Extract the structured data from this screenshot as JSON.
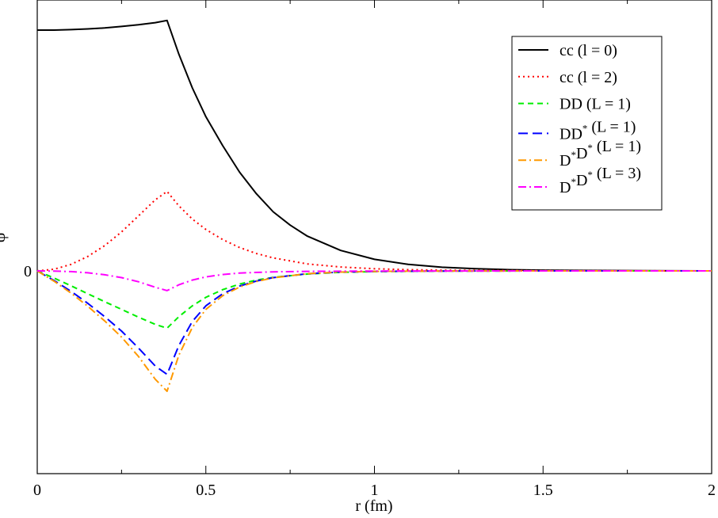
{
  "chart_data": {
    "type": "line",
    "title": "",
    "xlabel": "r (fm)",
    "ylabel": "ψ",
    "xlim": [
      0,
      2
    ],
    "ylim": [
      -0.9,
      1.12
    ],
    "x_ticks": [
      "0",
      "0.5",
      "1",
      "1.5",
      "2"
    ],
    "y_ticks": [
      "0"
    ],
    "grid": false,
    "legend_position": "top-right",
    "series": [
      {
        "name": "cc (l = 0)",
        "color": "#000000",
        "dash": "solid",
        "x": [
          0,
          0.05,
          0.1,
          0.15,
          0.2,
          0.25,
          0.3,
          0.35,
          0.385,
          0.42,
          0.46,
          0.5,
          0.55,
          0.6,
          0.65,
          0.7,
          0.75,
          0.8,
          0.9,
          1.0,
          1.1,
          1.2,
          1.3,
          1.4,
          1.5,
          1.6,
          1.8,
          2.0
        ],
        "y": [
          1.0,
          1.0,
          1.002,
          1.005,
          1.009,
          1.015,
          1.022,
          1.031,
          1.04,
          0.9,
          0.76,
          0.64,
          0.52,
          0.41,
          0.32,
          0.245,
          0.19,
          0.145,
          0.085,
          0.048,
          0.027,
          0.015,
          0.009,
          0.005,
          0.003,
          0.002,
          0.001,
          0.0
        ]
      },
      {
        "name": "cc (l = 2)",
        "color": "#ff0000",
        "dash": "dotted",
        "x": [
          0,
          0.05,
          0.1,
          0.15,
          0.2,
          0.25,
          0.3,
          0.35,
          0.385,
          0.42,
          0.46,
          0.5,
          0.55,
          0.6,
          0.65,
          0.7,
          0.8,
          0.9,
          1.0,
          1.1,
          1.2,
          1.3,
          1.5,
          2.0
        ],
        "y": [
          0.0,
          0.007,
          0.027,
          0.06,
          0.105,
          0.162,
          0.228,
          0.295,
          0.33,
          0.27,
          0.215,
          0.172,
          0.13,
          0.097,
          0.072,
          0.054,
          0.029,
          0.016,
          0.009,
          0.005,
          0.003,
          0.002,
          0.0005,
          0.0
        ]
      },
      {
        "name": "DD (L = 1)",
        "color": "#00ee00",
        "dash": "dashed",
        "x": [
          0,
          0.05,
          0.1,
          0.15,
          0.2,
          0.25,
          0.3,
          0.35,
          0.385,
          0.42,
          0.46,
          0.5,
          0.55,
          0.6,
          0.65,
          0.7,
          0.8,
          0.9,
          1.0,
          1.2,
          1.5,
          2.0
        ],
        "y": [
          0.0,
          -0.03,
          -0.062,
          -0.095,
          -0.128,
          -0.16,
          -0.192,
          -0.222,
          -0.238,
          -0.19,
          -0.145,
          -0.11,
          -0.078,
          -0.055,
          -0.038,
          -0.027,
          -0.013,
          -0.006,
          -0.003,
          -0.001,
          0.0,
          0.0
        ]
      },
      {
        "name": "DD* (L = 1)",
        "color": "#0000ff",
        "dash": "longdash",
        "x": [
          0,
          0.05,
          0.1,
          0.15,
          0.2,
          0.25,
          0.3,
          0.35,
          0.385,
          0.42,
          0.46,
          0.5,
          0.55,
          0.6,
          0.65,
          0.7,
          0.8,
          0.9,
          1.0,
          1.2,
          1.5,
          2.0
        ],
        "y": [
          0.0,
          -0.04,
          -0.085,
          -0.135,
          -0.19,
          -0.25,
          -0.32,
          -0.395,
          -0.43,
          -0.31,
          -0.21,
          -0.145,
          -0.095,
          -0.063,
          -0.042,
          -0.028,
          -0.012,
          -0.005,
          -0.002,
          -0.0005,
          0.0,
          0.0
        ]
      },
      {
        "name": "D*D* (L = 1)",
        "color": "#ff9900",
        "dash": "dashdot",
        "x": [
          0,
          0.05,
          0.1,
          0.15,
          0.2,
          0.25,
          0.3,
          0.35,
          0.385,
          0.42,
          0.46,
          0.5,
          0.55,
          0.6,
          0.65,
          0.7,
          0.8,
          0.9,
          1.0,
          1.2,
          1.5,
          2.0
        ],
        "y": [
          0.0,
          -0.043,
          -0.092,
          -0.147,
          -0.208,
          -0.275,
          -0.355,
          -0.45,
          -0.5,
          -0.35,
          -0.235,
          -0.16,
          -0.103,
          -0.067,
          -0.044,
          -0.029,
          -0.012,
          -0.005,
          -0.002,
          -0.0005,
          0.0,
          0.0
        ]
      },
      {
        "name": "D*D* (L = 3)",
        "color": "#ff00ff",
        "dash": "dashdot",
        "x": [
          0,
          0.05,
          0.1,
          0.15,
          0.2,
          0.25,
          0.3,
          0.35,
          0.385,
          0.42,
          0.46,
          0.5,
          0.55,
          0.6,
          0.7,
          0.8,
          1.0,
          1.5,
          2.0
        ],
        "y": [
          0.0,
          -0.001,
          -0.003,
          -0.008,
          -0.016,
          -0.028,
          -0.045,
          -0.068,
          -0.082,
          -0.058,
          -0.038,
          -0.025,
          -0.015,
          -0.009,
          -0.004,
          -0.002,
          -0.0005,
          0.0,
          0.0
        ]
      }
    ]
  },
  "legend": [
    {
      "base": "cc (l = 0)",
      "sups": []
    },
    {
      "base": "cc (l = 2)",
      "sups": []
    },
    {
      "base": "DD (L = 1)",
      "sups": []
    },
    {
      "base": "DD",
      "sups": [
        "*"
      ],
      "tail": " (L = 1)"
    },
    {
      "base": "D",
      "sups": [
        "*"
      ],
      "mid": "D",
      "sups2": [
        "*"
      ],
      "tail": " (L = 1)"
    },
    {
      "base": "D",
      "sups": [
        "*"
      ],
      "mid": "D",
      "sups2": [
        "*"
      ],
      "tail": " (L = 3)"
    }
  ]
}
